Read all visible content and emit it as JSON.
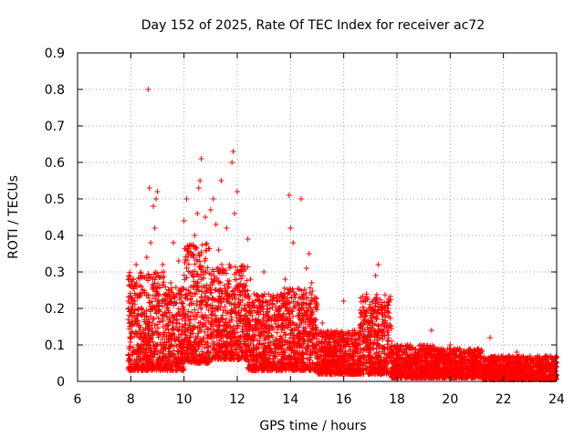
{
  "chart_data": {
    "type": "scatter",
    "title": "Day 152 of 2025, Rate Of TEC Index for receiver ac72",
    "xlabel": "GPS time / hours",
    "ylabel": "ROTI / TECUs",
    "xlim": [
      6,
      24
    ],
    "ylim": [
      0,
      0.9
    ],
    "xticks": [
      "6",
      "8",
      "10",
      "12",
      "14",
      "16",
      "18",
      "20",
      "22",
      "24"
    ],
    "yticks": [
      "0",
      "0.1",
      "0.2",
      "0.3",
      "0.4",
      "0.5",
      "0.6",
      "0.7",
      "0.8",
      "0.9"
    ],
    "grid": true,
    "marker": "+",
    "marker_color": "#ff0000",
    "series": [
      {
        "name": "ROTI",
        "points": [
          [
            7.9,
            0.2
          ],
          [
            7.95,
            0.15
          ],
          [
            8.0,
            0.23
          ],
          [
            8.05,
            0.18
          ],
          [
            8.1,
            0.28
          ],
          [
            8.2,
            0.32
          ],
          [
            8.3,
            0.12
          ],
          [
            8.4,
            0.26
          ],
          [
            8.5,
            0.1
          ],
          [
            8.6,
            0.34
          ],
          [
            8.65,
            0.8
          ],
          [
            8.7,
            0.53
          ],
          [
            8.75,
            0.38
          ],
          [
            8.8,
            0.2
          ],
          [
            8.85,
            0.48
          ],
          [
            8.9,
            0.42
          ],
          [
            8.95,
            0.5
          ],
          [
            9.0,
            0.52
          ],
          [
            9.1,
            0.08
          ],
          [
            9.2,
            0.32
          ],
          [
            9.3,
            0.22
          ],
          [
            9.4,
            0.06
          ],
          [
            9.5,
            0.27
          ],
          [
            9.6,
            0.38
          ],
          [
            9.7,
            0.15
          ],
          [
            9.8,
            0.33
          ],
          [
            9.9,
            0.09
          ],
          [
            10.0,
            0.44
          ],
          [
            10.1,
            0.5
          ],
          [
            10.2,
            0.37
          ],
          [
            10.3,
            0.06
          ],
          [
            10.4,
            0.4
          ],
          [
            10.5,
            0.46
          ],
          [
            10.55,
            0.53
          ],
          [
            10.6,
            0.55
          ],
          [
            10.65,
            0.61
          ],
          [
            10.7,
            0.3
          ],
          [
            10.8,
            0.45
          ],
          [
            10.9,
            0.12
          ],
          [
            11.0,
            0.47
          ],
          [
            11.1,
            0.5
          ],
          [
            11.2,
            0.43
          ],
          [
            11.3,
            0.36
          ],
          [
            11.4,
            0.55
          ],
          [
            11.5,
            0.1
          ],
          [
            11.6,
            0.42
          ],
          [
            11.7,
            0.32
          ],
          [
            11.8,
            0.6
          ],
          [
            11.85,
            0.63
          ],
          [
            11.9,
            0.46
          ],
          [
            12.0,
            0.52
          ],
          [
            12.1,
            0.29
          ],
          [
            12.2,
            0.15
          ],
          [
            12.4,
            0.39
          ],
          [
            12.5,
            0.28
          ],
          [
            12.6,
            0.1
          ],
          [
            12.8,
            0.22
          ],
          [
            13.0,
            0.3
          ],
          [
            13.2,
            0.12
          ],
          [
            13.4,
            0.05
          ],
          [
            13.6,
            0.2
          ],
          [
            13.8,
            0.28
          ],
          [
            13.95,
            0.51
          ],
          [
            14.0,
            0.42
          ],
          [
            14.1,
            0.38
          ],
          [
            14.2,
            0.06
          ],
          [
            14.4,
            0.5
          ],
          [
            14.5,
            0.17
          ],
          [
            14.6,
            0.31
          ],
          [
            14.7,
            0.35
          ],
          [
            14.8,
            0.27
          ],
          [
            15.0,
            0.08
          ],
          [
            15.2,
            0.16
          ],
          [
            15.5,
            0.1
          ],
          [
            15.8,
            0.05
          ],
          [
            16.0,
            0.22
          ],
          [
            16.2,
            0.07
          ],
          [
            16.4,
            0.14
          ],
          [
            16.6,
            0.12
          ],
          [
            16.8,
            0.18
          ],
          [
            17.0,
            0.2
          ],
          [
            17.2,
            0.29
          ],
          [
            17.3,
            0.32
          ],
          [
            17.4,
            0.2
          ],
          [
            17.6,
            0.15
          ],
          [
            17.8,
            0.11
          ],
          [
            18.0,
            0.08
          ],
          [
            18.2,
            0.06
          ],
          [
            18.5,
            0.1
          ],
          [
            18.8,
            0.05
          ],
          [
            19.0,
            0.09
          ],
          [
            19.3,
            0.14
          ],
          [
            19.6,
            0.06
          ],
          [
            20.0,
            0.1
          ],
          [
            20.3,
            0.05
          ],
          [
            20.6,
            0.08
          ],
          [
            21.0,
            0.04
          ],
          [
            21.5,
            0.12
          ],
          [
            22.0,
            0.06
          ],
          [
            22.5,
            0.08
          ],
          [
            23.0,
            0.07
          ],
          [
            23.5,
            0.05
          ],
          [
            23.8,
            0.06
          ],
          [
            24.0,
            0.04
          ]
        ]
      }
    ],
    "noise_bands": [
      {
        "x": [
          7.9,
          9.3
        ],
        "low": 0.03,
        "high": 0.3
      },
      {
        "x": [
          9.3,
          10.0
        ],
        "low": 0.03,
        "high": 0.26
      },
      {
        "x": [
          10.0,
          11.0
        ],
        "low": 0.05,
        "high": 0.38
      },
      {
        "x": [
          11.0,
          12.4
        ],
        "low": 0.06,
        "high": 0.32
      },
      {
        "x": [
          12.4,
          13.7
        ],
        "low": 0.03,
        "high": 0.24
      },
      {
        "x": [
          13.7,
          15.0
        ],
        "low": 0.03,
        "high": 0.26
      },
      {
        "x": [
          15.0,
          16.6
        ],
        "low": 0.02,
        "high": 0.14
      },
      {
        "x": [
          16.6,
          17.8
        ],
        "low": 0.02,
        "high": 0.24
      },
      {
        "x": [
          17.8,
          19.4
        ],
        "low": 0.01,
        "high": 0.1
      },
      {
        "x": [
          19.4,
          21.2
        ],
        "low": 0.01,
        "high": 0.09
      },
      {
        "x": [
          21.2,
          24.0
        ],
        "low": 0.005,
        "high": 0.07
      }
    ]
  }
}
